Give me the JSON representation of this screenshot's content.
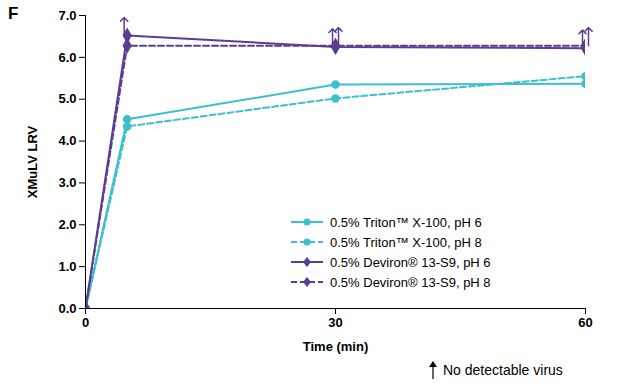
{
  "chart_data": {
    "type": "line",
    "title": "F",
    "x_label": "Time (min)",
    "y_label": "XMuLV LRV",
    "x": [
      0,
      5,
      30,
      60
    ],
    "series": [
      {
        "name": "0.5% Triton™ X-100, pH 6",
        "color": "#3dbfcc",
        "marker": "circle",
        "line_style": "solid",
        "values": [
          0,
          4.52,
          5.35,
          5.37
        ],
        "no_detectable_virus": [
          false,
          false,
          false,
          false
        ]
      },
      {
        "name": "0.5% Triton™ X-100, pH 8",
        "color": "#3dbfcc",
        "marker": "circle",
        "line_style": "dashed",
        "values": [
          0,
          4.35,
          5.02,
          5.55
        ],
        "no_detectable_virus": [
          false,
          false,
          false,
          false
        ]
      },
      {
        "name": "0.5% Deviron® 13-S9, pH 6",
        "color": "#5c3d91",
        "marker": "diamond",
        "line_style": "solid",
        "values": [
          0,
          6.52,
          6.25,
          6.22
        ],
        "no_detectable_virus": [
          false,
          true,
          true,
          true
        ]
      },
      {
        "name": "0.5% Deviron® 13-S9, pH 8",
        "color": "#5c3d91",
        "marker": "diamond",
        "line_style": "dashed",
        "values": [
          0,
          6.28,
          6.28,
          6.28
        ],
        "no_detectable_virus": [
          false,
          false,
          true,
          true
        ]
      }
    ],
    "xlim": [
      0,
      60
    ],
    "xticks": [
      0,
      30,
      60
    ],
    "ylim": [
      0,
      7
    ],
    "yticks": [
      {
        "value": 0,
        "label": "0.0"
      },
      {
        "value": 1,
        "label": "1.0"
      },
      {
        "value": 2,
        "label": "2.0"
      },
      {
        "value": 3,
        "label": "3.0"
      },
      {
        "value": 4,
        "label": "4.0"
      },
      {
        "value": 5,
        "label": "5.0"
      },
      {
        "value": 6,
        "label": "6.0"
      },
      {
        "value": 7,
        "label": "7.0"
      }
    ],
    "grid": false,
    "legend": "lower right",
    "annotation": "No detectable virus"
  }
}
